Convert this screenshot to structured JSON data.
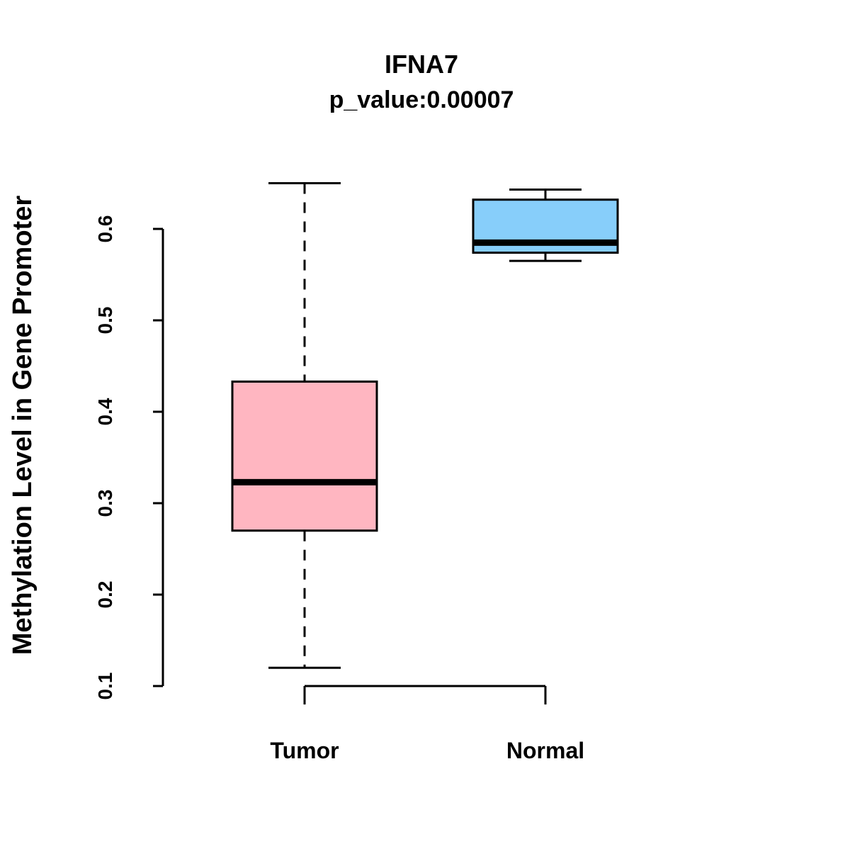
{
  "title": "IFNA7",
  "subtitle": "p_value:0.00007",
  "ylabel": "Methylation Level in Gene Promoter",
  "chart_data": {
    "type": "boxplot",
    "title": "IFNA7",
    "subtitle": "p_value:0.00007",
    "ylabel": "Methylation Level in Gene Promoter",
    "xlabel": "",
    "categories": [
      "Tumor",
      "Normal"
    ],
    "yticks": [
      0.1,
      0.2,
      0.3,
      0.4,
      0.5,
      0.6
    ],
    "ylim": [
      0.08,
      0.66
    ],
    "grid": false,
    "legend": "none",
    "colors": {
      "tumor_fill": "#FFB6C1",
      "normal_fill": "#87CEFA",
      "stroke": "#000000"
    },
    "series": [
      {
        "name": "Tumor",
        "color": "#FFB6C1",
        "whisker_low": 0.12,
        "q1": 0.27,
        "median": 0.323,
        "q3": 0.433,
        "whisker_high": 0.65
      },
      {
        "name": "Normal",
        "color": "#87CEFA",
        "whisker_low": 0.565,
        "q1": 0.574,
        "median": 0.585,
        "q3": 0.632,
        "whisker_high": 0.643
      }
    ]
  }
}
